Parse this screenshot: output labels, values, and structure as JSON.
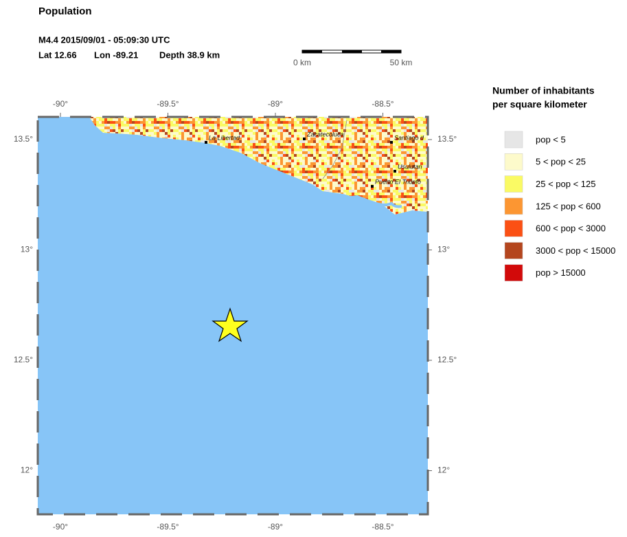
{
  "header": {
    "title": "Population",
    "event": "M4.4  2015/09/01 - 05:09:30 UTC",
    "lat": "Lat 12.66",
    "lon": "Lon -89.21",
    "depth": "Depth  38.9 km"
  },
  "scale_bar": {
    "start": "0 km",
    "end": "50 km"
  },
  "map": {
    "lon_ticks": [
      {
        "value": -90,
        "label": "-90°"
      },
      {
        "value": -89.5,
        "label": "-89.5°"
      },
      {
        "value": -89,
        "label": "-89°"
      },
      {
        "value": -88.5,
        "label": "-88.5°"
      }
    ],
    "lat_ticks": [
      {
        "value": 13.5,
        "label": "13.5°"
      },
      {
        "value": 13,
        "label": "13°"
      },
      {
        "value": 12.5,
        "label": "12.5°"
      },
      {
        "value": 12,
        "label": "12°"
      }
    ],
    "cities": [
      "La Libertad",
      "Zacatecoluca",
      "Santiago d",
      "Usulutan",
      "Puerto El Triunfo"
    ]
  },
  "legend": {
    "title": [
      "Number of inhabitants",
      "per square kilometer"
    ],
    "items": [
      {
        "label": "pop < 5",
        "color": "#e6e6e6"
      },
      {
        "label": "5 < pop < 25",
        "color": "#fdfacb"
      },
      {
        "label": "25 < pop < 125",
        "color": "#fafa64"
      },
      {
        "label": "125 < pop < 600",
        "color": "#fc9632"
      },
      {
        "label": "600 < pop < 3000",
        "color": "#fb5014"
      },
      {
        "label": "3000 < pop < 15000",
        "color": "#b4461e"
      },
      {
        "label": "pop > 15000",
        "color": "#d20a0a"
      }
    ]
  }
}
